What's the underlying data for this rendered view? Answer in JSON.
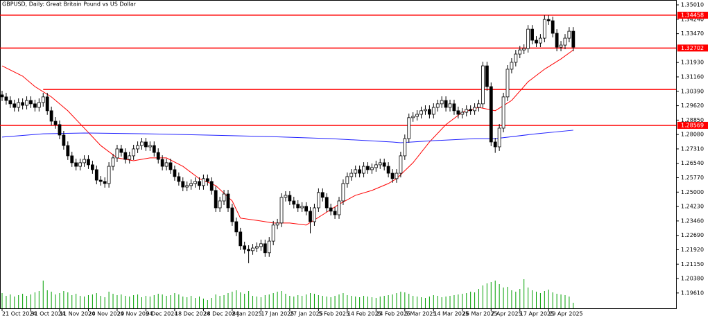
{
  "chart_data": {
    "type": "candlestick",
    "title": "GBPUSD, Daily:  Great Britain Pound vs US Dollar",
    "ylim": [
      1.1879,
      1.3527
    ],
    "xlim": [
      0,
      164
    ],
    "yticks": [
      {
        "value": 1.3501,
        "label": "1.35010"
      },
      {
        "value": 1.3424,
        "label": "1.34240"
      },
      {
        "value": 1.3347,
        "label": "1.33470"
      },
      {
        "value": 1.3193,
        "label": "1.31930"
      },
      {
        "value": 1.3116,
        "label": "1.31160"
      },
      {
        "value": 1.3039,
        "label": "1.30390"
      },
      {
        "value": 1.2962,
        "label": "1.29620"
      },
      {
        "value": 1.2885,
        "label": "1.28850"
      },
      {
        "value": 1.2808,
        "label": "1.28080"
      },
      {
        "value": 1.2731,
        "label": "1.27310"
      },
      {
        "value": 1.2654,
        "label": "1.26540"
      },
      {
        "value": 1.2577,
        "label": "1.25770"
      },
      {
        "value": 1.25,
        "label": "1.25000"
      },
      {
        "value": 1.2423,
        "label": "1.24230"
      },
      {
        "value": 1.2346,
        "label": "1.23460"
      },
      {
        "value": 1.2269,
        "label": "1.22690"
      },
      {
        "value": 1.2192,
        "label": "1.21920"
      },
      {
        "value": 1.2115,
        "label": "1.21150"
      },
      {
        "value": 1.2038,
        "label": "1.20380"
      },
      {
        "value": 1.1961,
        "label": "1.19610"
      }
    ],
    "xticks": [
      {
        "value": 0,
        "label": "21 Oct 2024"
      },
      {
        "value": 7,
        "label": "31 Oct 2024"
      },
      {
        "value": 14,
        "label": "11 Nov 2024"
      },
      {
        "value": 21,
        "label": "20 Nov 2024"
      },
      {
        "value": 28,
        "label": "29 Nov 2024"
      },
      {
        "value": 35,
        "label": "9 Dec 2024"
      },
      {
        "value": 42,
        "label": "18 Dec 2024"
      },
      {
        "value": 49,
        "label": "28 Dec 2024"
      },
      {
        "value": 56,
        "label": "8 Jan 2025"
      },
      {
        "value": 63,
        "label": "17 Jan 2025"
      },
      {
        "value": 70,
        "label": "27 Jan 2025"
      },
      {
        "value": 77,
        "label": "5 Feb 2025"
      },
      {
        "value": 84,
        "label": "14 Feb 2025"
      },
      {
        "value": 91,
        "label": "24 Feb 2025"
      },
      {
        "value": 98,
        "label": "5 Mar 2025"
      },
      {
        "value": 105,
        "label": "14 Mar 2025"
      },
      {
        "value": 112,
        "label": "26 Mar 2025"
      },
      {
        "value": 119,
        "label": "7 Apr 2025"
      },
      {
        "value": 126,
        "label": "17 Apr 2025"
      },
      {
        "value": 133,
        "label": "29 Apr 2025"
      }
    ],
    "open": [
      1.302,
      1.3009,
      1.299,
      1.2972,
      1.2953,
      1.2979,
      1.2964,
      1.299,
      1.2972,
      1.2953,
      1.2979,
      1.3009,
      1.2935,
      1.2879,
      1.2861,
      1.2805,
      1.2749,
      1.2694,
      1.2657,
      1.2638,
      1.2657,
      1.2675,
      1.2646,
      1.262,
      1.2564,
      1.2557,
      1.2546,
      1.2638,
      1.2683,
      1.2731,
      1.2712,
      1.2675,
      1.2694,
      1.2731,
      1.2749,
      1.2768,
      1.2742,
      1.2749,
      1.2712,
      1.2675,
      1.2638,
      1.2657,
      1.262,
      1.2583,
      1.2557,
      1.2527,
      1.2535,
      1.2546,
      1.2557,
      1.2535,
      1.2572,
      1.2557,
      1.2509,
      1.2416,
      1.2453,
      1.249,
      1.2416,
      1.2342,
      1.2287,
      1.2213,
      1.2194,
      1.2187,
      1.2201,
      1.2209,
      1.2224,
      1.2176,
      1.2238,
      1.2324,
      1.2335,
      1.2472,
      1.2483,
      1.2453,
      1.2435,
      1.2416,
      1.2424,
      1.2398,
      1.2342,
      1.2416,
      1.2498,
      1.2472,
      1.2416,
      1.2398,
      1.2379,
      1.2453,
      1.2546,
      1.2583,
      1.2601,
      1.262,
      1.2601,
      1.2638,
      1.262,
      1.2631,
      1.2646,
      1.2657,
      1.2638,
      1.2601,
      1.2572,
      1.2601,
      1.2694,
      1.2786,
      1.2898,
      1.2905,
      1.2916,
      1.2935,
      1.2942,
      1.2916,
      1.2953,
      1.2972,
      1.299,
      1.2953,
      1.2972,
      1.2935,
      1.2916,
      1.2927,
      1.2942,
      1.2935,
      1.2953,
      1.2972,
      1.3175,
      1.3064,
      1.2768,
      1.2742,
      1.2842,
      1.3009,
      1.3157,
      1.3194,
      1.3238,
      1.326,
      1.3268,
      1.3371,
      1.3312,
      1.3297,
      1.3323,
      1.3423,
      1.3416,
      1.3349,
      1.3275,
      1.3286,
      1.3323,
      1.336
    ],
    "high": [
      1.3042,
      1.3031,
      1.3012,
      1.2994,
      1.3001,
      1.3001,
      1.3012,
      1.3012,
      1.2994,
      1.3001,
      1.3031,
      1.3031,
      1.2957,
      1.2901,
      1.2883,
      1.2827,
      1.2771,
      1.2716,
      1.2679,
      1.2679,
      1.2697,
      1.2697,
      1.2668,
      1.2642,
      1.2586,
      1.2579,
      1.266,
      1.2705,
      1.2753,
      1.2753,
      1.2734,
      1.2716,
      1.2753,
      1.2771,
      1.279,
      1.279,
      1.2771,
      1.2771,
      1.2734,
      1.2697,
      1.2679,
      1.2679,
      1.2642,
      1.2605,
      1.2579,
      1.2557,
      1.2568,
      1.2579,
      1.2579,
      1.2594,
      1.2594,
      1.2579,
      1.2531,
      1.2475,
      1.2512,
      1.2512,
      1.2438,
      1.2364,
      1.2309,
      1.2235,
      1.2216,
      1.2223,
      1.2231,
      1.2246,
      1.2246,
      1.226,
      1.2346,
      1.2357,
      1.2494,
      1.2505,
      1.2505,
      1.2475,
      1.2457,
      1.2446,
      1.2446,
      1.242,
      1.2438,
      1.252,
      1.252,
      1.2494,
      1.2438,
      1.242,
      1.2475,
      1.2568,
      1.2605,
      1.2623,
      1.2642,
      1.2642,
      1.266,
      1.266,
      1.2653,
      1.2668,
      1.2679,
      1.2679,
      1.266,
      1.2623,
      1.2623,
      1.2716,
      1.2808,
      1.292,
      1.2927,
      1.2938,
      1.2957,
      1.2964,
      1.2964,
      1.2975,
      1.2994,
      1.3012,
      1.3012,
      1.2994,
      1.2994,
      1.2957,
      1.2949,
      1.2964,
      1.2964,
      1.2975,
      1.2994,
      1.3197,
      1.3197,
      1.3086,
      1.279,
      1.2864,
      1.3031,
      1.3179,
      1.3216,
      1.326,
      1.3282,
      1.329,
      1.3393,
      1.3393,
      1.3334,
      1.3345,
      1.3445,
      1.3445,
      1.3438,
      1.3371,
      1.3308,
      1.3345,
      1.3382,
      1.3382
    ],
    "low": [
      1.2987,
      1.2968,
      1.295,
      1.2931,
      1.2931,
      1.2942,
      1.2942,
      1.295,
      1.2931,
      1.2931,
      1.2957,
      1.2913,
      1.2857,
      1.2839,
      1.2783,
      1.2727,
      1.2672,
      1.2635,
      1.2616,
      1.2616,
      1.2635,
      1.2624,
      1.2598,
      1.2542,
      1.2535,
      1.2524,
      1.2524,
      1.2616,
      1.2661,
      1.269,
      1.2653,
      1.2653,
      1.2672,
      1.2709,
      1.2727,
      1.272,
      1.272,
      1.269,
      1.2653,
      1.2616,
      1.2616,
      1.2598,
      1.2561,
      1.2535,
      1.2505,
      1.2505,
      1.2513,
      1.2524,
      1.2513,
      1.2513,
      1.2535,
      1.2487,
      1.2394,
      1.2394,
      1.2431,
      1.2394,
      1.232,
      1.2265,
      1.2191,
      1.2172,
      1.212,
      1.2165,
      1.2179,
      1.2187,
      1.2154,
      1.2154,
      1.2216,
      1.2302,
      1.2313,
      1.245,
      1.2431,
      1.2413,
      1.2394,
      1.2394,
      1.2376,
      1.228,
      1.232,
      1.2394,
      1.245,
      1.2394,
      1.2376,
      1.2357,
      1.2357,
      1.2431,
      1.2524,
      1.2561,
      1.2579,
      1.2579,
      1.2579,
      1.2598,
      1.2598,
      1.2609,
      1.2624,
      1.2616,
      1.2579,
      1.255,
      1.255,
      1.2579,
      1.2672,
      1.2764,
      1.2876,
      1.2883,
      1.2894,
      1.2913,
      1.2894,
      1.2894,
      1.2931,
      1.295,
      1.2931,
      1.2931,
      1.2913,
      1.2894,
      1.2894,
      1.2905,
      1.2913,
      1.2913,
      1.2931,
      1.295,
      1.3042,
      1.2746,
      1.271,
      1.272,
      1.282,
      1.2987,
      1.3135,
      1.3172,
      1.3216,
      1.3238,
      1.3246,
      1.329,
      1.3275,
      1.3275,
      1.3301,
      1.3394,
      1.3327,
      1.3253,
      1.3253,
      1.3264,
      1.3301,
      1.3253
    ],
    "close": [
      1.3009,
      1.299,
      1.2972,
      1.2953,
      1.2979,
      1.2964,
      1.299,
      1.2972,
      1.2953,
      1.2979,
      1.3009,
      1.2935,
      1.2879,
      1.2861,
      1.2805,
      1.2749,
      1.2694,
      1.2657,
      1.2638,
      1.2657,
      1.2675,
      1.2646,
      1.262,
      1.2564,
      1.2557,
      1.2546,
      1.2638,
      1.2683,
      1.2731,
      1.2712,
      1.2675,
      1.2694,
      1.2731,
      1.2749,
      1.2768,
      1.2742,
      1.2749,
      1.2712,
      1.2675,
      1.2638,
      1.2657,
      1.262,
      1.2583,
      1.2557,
      1.2527,
      1.2535,
      1.2546,
      1.2557,
      1.2535,
      1.2572,
      1.2557,
      1.2509,
      1.2416,
      1.2453,
      1.249,
      1.2416,
      1.2342,
      1.2287,
      1.2213,
      1.2194,
      1.2187,
      1.2201,
      1.2209,
      1.2224,
      1.2176,
      1.2238,
      1.2324,
      1.2335,
      1.2472,
      1.2483,
      1.2453,
      1.2435,
      1.2416,
      1.2424,
      1.2398,
      1.2342,
      1.2416,
      1.2498,
      1.2472,
      1.2416,
      1.2398,
      1.2379,
      1.2453,
      1.2546,
      1.2583,
      1.2601,
      1.262,
      1.2601,
      1.2638,
      1.262,
      1.2631,
      1.2646,
      1.2657,
      1.2638,
      1.2601,
      1.2572,
      1.2601,
      1.2694,
      1.2786,
      1.2898,
      1.2905,
      1.2916,
      1.2935,
      1.2942,
      1.2916,
      1.2953,
      1.2972,
      1.299,
      1.2953,
      1.2972,
      1.2935,
      1.2916,
      1.2927,
      1.2942,
      1.2935,
      1.2953,
      1.2972,
      1.3175,
      1.3064,
      1.2768,
      1.2742,
      1.2842,
      1.3009,
      1.3157,
      1.3194,
      1.3238,
      1.326,
      1.3268,
      1.3371,
      1.3312,
      1.3297,
      1.3323,
      1.3423,
      1.3416,
      1.3349,
      1.3275,
      1.3286,
      1.3323,
      1.336,
      1.3275
    ],
    "volume": [
      22,
      18,
      20,
      17,
      19,
      21,
      18,
      20,
      23,
      25,
      40,
      26,
      24,
      20,
      22,
      25,
      23,
      19,
      21,
      18,
      17,
      19,
      20,
      22,
      18,
      16,
      24,
      21,
      19,
      20,
      18,
      17,
      19,
      20,
      16,
      18,
      17,
      19,
      21,
      20,
      18,
      19,
      22,
      20,
      17,
      16,
      18,
      15,
      17,
      14,
      12,
      15,
      20,
      18,
      19,
      22,
      24,
      26,
      23,
      21,
      25,
      18,
      17,
      16,
      19,
      20,
      22,
      24,
      25,
      21,
      18,
      17,
      19,
      18,
      20,
      22,
      21,
      19,
      18,
      17,
      16,
      18,
      20,
      22,
      19,
      18,
      17,
      16,
      18,
      17,
      16,
      15,
      17,
      18,
      19,
      20,
      22,
      24,
      23,
      21,
      18,
      17,
      16,
      15,
      17,
      19,
      18,
      16,
      17,
      18,
      19,
      20,
      21,
      22,
      24,
      23,
      28,
      33,
      36,
      38,
      40,
      35,
      30,
      31,
      26,
      24,
      28,
      42,
      30,
      26,
      24,
      22,
      25,
      27,
      23,
      21,
      20,
      19,
      17,
      8
    ],
    "volume_color": "#00a000",
    "bull_color": "#ffffff",
    "bear_color": "#000000",
    "series": [
      {
        "color": "#ff0000",
        "x": [
          0,
          5,
          8,
          12,
          16,
          20,
          24,
          28,
          32,
          36,
          40,
          44,
          48,
          52,
          56,
          58,
          62,
          66,
          70,
          74,
          78,
          82,
          86,
          90,
          94,
          96,
          100,
          104,
          108,
          112,
          116,
          120,
          124,
          128,
          132,
          136,
          139
        ],
        "values": [
          1.3175,
          1.312,
          1.3064,
          1.3009,
          1.2935,
          1.2842,
          1.2749,
          1.2683,
          1.2668,
          1.2683,
          1.2683,
          1.2638,
          1.2572,
          1.2535,
          1.2453,
          1.2361,
          1.2349,
          1.2335,
          1.2335,
          1.2324,
          1.2379,
          1.2435,
          1.2483,
          1.2509,
          1.2546,
          1.2572,
          1.2657,
          1.2768,
          1.2861,
          1.2927,
          1.2953,
          1.2935,
          1.299,
          1.309,
          1.3157,
          1.3212,
          1.326
        ]
      },
      {
        "color": "#2020ff",
        "x": [
          0,
          10,
          20,
          35,
          50,
          65,
          80,
          95,
          97,
          105,
          115,
          120,
          130,
          139
        ],
        "values": [
          1.2794,
          1.2812,
          1.2816,
          1.2812,
          1.2805,
          1.2797,
          1.2786,
          1.2768,
          1.2764,
          1.2775,
          1.2786,
          1.2786,
          1.2812,
          1.2831
        ]
      }
    ],
    "hlines": [
      1.34458,
      1.32702,
      1.28569
    ],
    "hline_partial": {
      "value": 1.3049,
      "from_x": 10
    },
    "hline_color": "#ff0000"
  }
}
